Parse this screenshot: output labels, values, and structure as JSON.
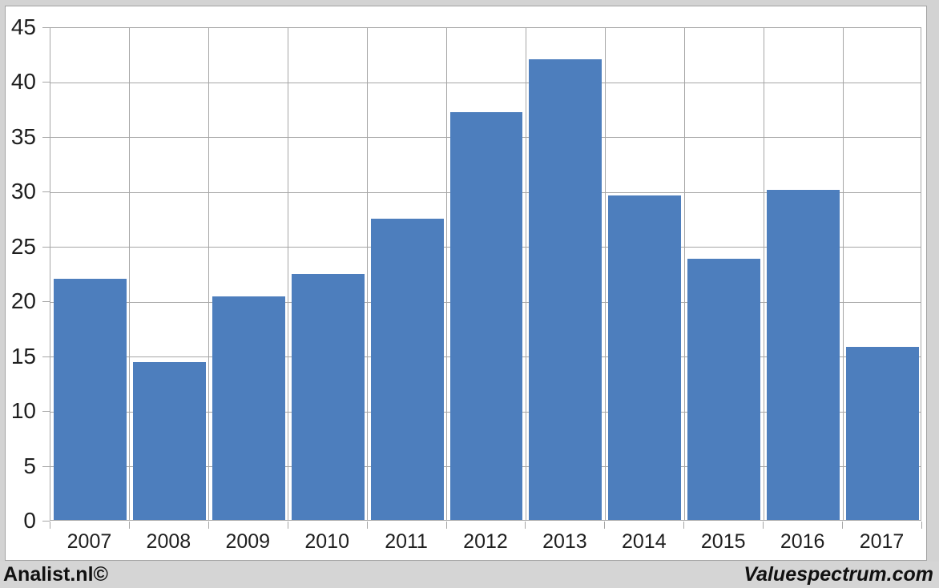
{
  "chart_data": {
    "type": "bar",
    "categories": [
      "2007",
      "2008",
      "2009",
      "2010",
      "2011",
      "2012",
      "2013",
      "2014",
      "2015",
      "2016",
      "2017"
    ],
    "values": [
      22.0,
      14.4,
      20.4,
      22.4,
      27.5,
      37.2,
      42.0,
      29.6,
      23.8,
      30.1,
      15.8
    ],
    "title": "",
    "xlabel": "",
    "ylabel": "",
    "ylim": [
      0,
      45
    ],
    "yticks": [
      0,
      5,
      10,
      15,
      20,
      25,
      30,
      35,
      40,
      45
    ],
    "grid": true,
    "legend_position": "none",
    "bar_color": "#4d7ebd"
  },
  "colors": {
    "bar": "#4d7ebd",
    "grid": "#a6a6a6",
    "axis_text": "#1f1f1f",
    "page_background": "#d3d3d3",
    "panel_background": "#ffffff",
    "panel_border": "#a3a3a3"
  },
  "footer": {
    "left": "Analist.nl©",
    "right": "Valuespectrum.com"
  }
}
